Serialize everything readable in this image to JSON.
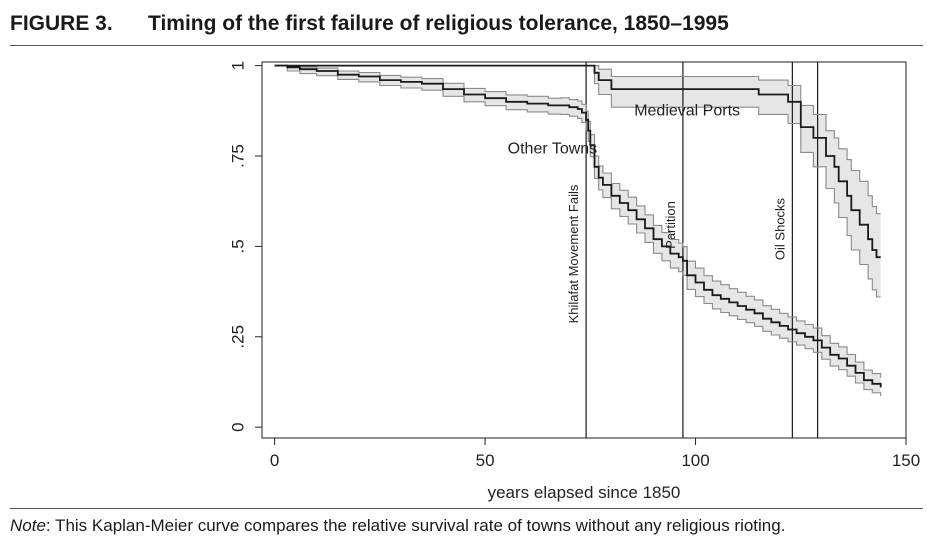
{
  "figure": {
    "label": "FIGURE 3.",
    "title": "Timing of the first failure of religious tolerance, 1850–1995",
    "note_prefix": "Note",
    "note_text": ": This Kaplan-Meier curve compares the relative survival rate of towns without any religious rioting."
  },
  "chart_data": {
    "type": "line",
    "subtype": "kaplan-meier step curves with confidence bands",
    "xlabel": "years elapsed since 1850",
    "ylabel": "",
    "xlim": [
      -3,
      150
    ],
    "ylim": [
      -0.03,
      1.01
    ],
    "x_ticks": [
      0,
      50,
      100,
      150
    ],
    "y_ticks": [
      0,
      0.25,
      0.5,
      0.75,
      1
    ],
    "y_tick_labels": [
      "0",
      ".25",
      ".5",
      ".75",
      "1"
    ],
    "grid": false,
    "series": [
      {
        "name": "Other Towns",
        "x": [
          0,
          3,
          6,
          10,
          15,
          20,
          25,
          30,
          35,
          40,
          45,
          50,
          55,
          60,
          65,
          68,
          70,
          72,
          73,
          74,
          74.5,
          75,
          76,
          77,
          78,
          80,
          82,
          84,
          86,
          88,
          90,
          92,
          94,
          96,
          97,
          98,
          100,
          102,
          104,
          106,
          108,
          110,
          112,
          114,
          116,
          118,
          120,
          122,
          124,
          126,
          128,
          130,
          132,
          134,
          136,
          138,
          140,
          142,
          144
        ],
        "y": [
          1.0,
          0.995,
          0.99,
          0.985,
          0.975,
          0.97,
          0.96,
          0.955,
          0.95,
          0.935,
          0.92,
          0.91,
          0.9,
          0.895,
          0.89,
          0.89,
          0.885,
          0.88,
          0.87,
          0.85,
          0.82,
          0.78,
          0.72,
          0.69,
          0.67,
          0.64,
          0.62,
          0.6,
          0.575,
          0.55,
          0.52,
          0.5,
          0.48,
          0.47,
          0.46,
          0.42,
          0.4,
          0.38,
          0.365,
          0.355,
          0.345,
          0.335,
          0.325,
          0.315,
          0.3,
          0.29,
          0.28,
          0.27,
          0.26,
          0.25,
          0.24,
          0.22,
          0.2,
          0.19,
          0.17,
          0.15,
          0.13,
          0.12,
          0.11
        ],
        "ci_lower": [
          1.0,
          0.985,
          0.978,
          0.972,
          0.962,
          0.955,
          0.945,
          0.938,
          0.932,
          0.915,
          0.9,
          0.889,
          0.878,
          0.872,
          0.866,
          0.865,
          0.86,
          0.854,
          0.843,
          0.822,
          0.79,
          0.748,
          0.688,
          0.656,
          0.635,
          0.604,
          0.583,
          0.562,
          0.537,
          0.511,
          0.481,
          0.46,
          0.44,
          0.43,
          0.42,
          0.381,
          0.361,
          0.342,
          0.327,
          0.317,
          0.308,
          0.298,
          0.289,
          0.279,
          0.265,
          0.255,
          0.246,
          0.236,
          0.227,
          0.217,
          0.207,
          0.188,
          0.169,
          0.159,
          0.141,
          0.122,
          0.104,
          0.095,
          0.086
        ],
        "ci_upper": [
          1.0,
          0.999,
          0.996,
          0.993,
          0.985,
          0.981,
          0.973,
          0.968,
          0.964,
          0.951,
          0.937,
          0.928,
          0.919,
          0.915,
          0.91,
          0.911,
          0.906,
          0.902,
          0.893,
          0.874,
          0.846,
          0.809,
          0.75,
          0.722,
          0.703,
          0.674,
          0.655,
          0.636,
          0.612,
          0.587,
          0.558,
          0.538,
          0.519,
          0.509,
          0.499,
          0.459,
          0.44,
          0.419,
          0.404,
          0.394,
          0.383,
          0.373,
          0.362,
          0.352,
          0.336,
          0.326,
          0.315,
          0.305,
          0.294,
          0.284,
          0.274,
          0.253,
          0.232,
          0.222,
          0.201,
          0.18,
          0.158,
          0.148,
          0.137
        ],
        "label_at": [
          66,
          0.77
        ]
      },
      {
        "name": "Medieval Ports",
        "x": [
          0,
          75,
          76,
          77,
          80,
          110,
          115,
          120,
          122,
          124,
          125,
          127,
          128,
          130,
          131,
          133,
          134,
          136,
          137,
          139,
          141,
          142,
          143,
          144
        ],
        "y": [
          1.0,
          1.0,
          0.98,
          0.96,
          0.935,
          0.935,
          0.92,
          0.92,
          0.9,
          0.9,
          0.83,
          0.83,
          0.8,
          0.8,
          0.75,
          0.72,
          0.68,
          0.64,
          0.6,
          0.56,
          0.52,
          0.49,
          0.47,
          0.47
        ],
        "ci_lower": [
          1.0,
          1.0,
          0.95,
          0.92,
          0.885,
          0.885,
          0.865,
          0.865,
          0.84,
          0.84,
          0.76,
          0.76,
          0.72,
          0.72,
          0.66,
          0.62,
          0.58,
          0.53,
          0.49,
          0.45,
          0.41,
          0.38,
          0.36,
          0.36
        ],
        "ci_upper": [
          1.0,
          1.0,
          1.0,
          0.99,
          0.97,
          0.97,
          0.96,
          0.96,
          0.945,
          0.945,
          0.89,
          0.89,
          0.865,
          0.865,
          0.82,
          0.8,
          0.77,
          0.74,
          0.71,
          0.68,
          0.64,
          0.61,
          0.59,
          0.59
        ],
        "label_at": [
          98,
          0.875
        ]
      }
    ],
    "events": [
      {
        "label": "Khilafat Movement Fails",
        "x": 74
      },
      {
        "label": "Partition",
        "x": 97
      },
      {
        "label": "Oil Shocks",
        "x": 123
      },
      {
        "label": "",
        "x": 129
      }
    ],
    "colors": {
      "curve": "#1a1a1a",
      "ci": "#8a8a8a",
      "band_fill": "#e6e6e6",
      "event_line": "#1a1a1a",
      "axis": "#222222"
    }
  }
}
